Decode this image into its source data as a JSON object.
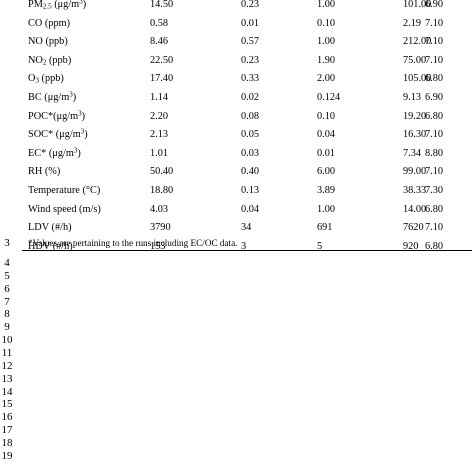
{
  "table": {
    "rows": [
      {
        "param": "PM<sub>2.5</sub> (μg/m<sup>3</sup>)",
        "mean": "14.50",
        "sd": "0.23",
        "min": "1.00",
        "max": "101.00",
        "ph": "6.90"
      },
      {
        "param": "CO (ppm)",
        "mean": "0.58",
        "sd": "0.01",
        "min": "0.10",
        "max": "2.19",
        "ph": "7.10"
      },
      {
        "param": "NO (ppb)",
        "mean": "8.46",
        "sd": "0.57",
        "min": "1.00",
        "max": "212.00",
        "ph": "7.10"
      },
      {
        "param": "NO<sub>2</sub> (ppb)",
        "mean": "22.50",
        "sd": "0.23",
        "min": "1.90",
        "max": "75.00",
        "ph": "7.10"
      },
      {
        "param": "O<sub>3</sub> (ppb)",
        "mean": "17.40",
        "sd": "0.33",
        "min": "2.00",
        "max": "105.00",
        "ph": "6.80"
      },
      {
        "param": "BC (μg/m<sup>3</sup>)",
        "mean": "1.14",
        "sd": "0.02",
        "min": "0.124",
        "max": "9.13",
        "ph": "6.90"
      },
      {
        "param": "POC*(μg/m<sup>3</sup>)",
        "mean": "2.20",
        "sd": "0.08",
        "min": "0.10",
        "max": "19.20",
        "ph": "6.80"
      },
      {
        "param": "SOC* (μg/m<sup>3</sup>)",
        "mean": "2.13",
        "sd": "0.05",
        "min": "0.04",
        "max": "16.30",
        "ph": "7.10"
      },
      {
        "param": "EC* (μg/m<sup>3</sup>)",
        "mean": "1.01",
        "sd": "0.03",
        "min": "0.01",
        "max": "7.34",
        "ph": "8.80"
      },
      {
        "param": "RH (%)",
        "mean": "50.40",
        "sd": "0.40",
        "min": "6.00",
        "max": "99.00",
        "ph": "7.10"
      },
      {
        "param": "Temperature (°C)",
        "mean": "18.80",
        "sd": "0.13",
        "min": "3.89",
        "max": "38.33",
        "ph": "7.30"
      },
      {
        "param": "Wind speed (m/s)",
        "mean": "4.03",
        "sd": "0.04",
        "min": "1.00",
        "max": "14.00",
        "ph": "6.80"
      },
      {
        "param": "LDV (#/h)",
        "mean": "3790",
        "sd": "34",
        "min": "691",
        "max": "7620",
        "ph": "7.10"
      },
      {
        "param": "HDV (#/h)",
        "mean": "153",
        "sd": "3",
        "min": "5",
        "max": "920",
        "ph": "6.80"
      }
    ]
  },
  "footnote": {
    "line_number": "3",
    "text": "*Values are pertaining to the runs including EC/OC data."
  },
  "line_numbers": [
    "4",
    "5",
    "6",
    "7",
    "8",
    "9",
    "10",
    "11",
    "12",
    "13",
    "14",
    "15",
    "16",
    "17",
    "18",
    "19"
  ]
}
